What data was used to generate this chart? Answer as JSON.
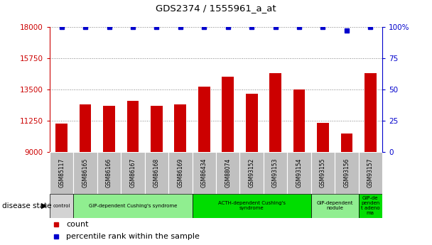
{
  "title": "GDS2374 / 1555961_a_at",
  "samples": [
    "GSM85117",
    "GSM86165",
    "GSM86166",
    "GSM86167",
    "GSM86168",
    "GSM86169",
    "GSM86434",
    "GSM88074",
    "GSM93152",
    "GSM93153",
    "GSM93154",
    "GSM93155",
    "GSM93156",
    "GSM93157"
  ],
  "counts": [
    11050,
    12400,
    12300,
    12700,
    12300,
    12400,
    13700,
    14400,
    13200,
    14650,
    13500,
    11100,
    10300,
    14650
  ],
  "percentiles": [
    100,
    100,
    100,
    100,
    100,
    100,
    100,
    100,
    100,
    100,
    100,
    100,
    97,
    100
  ],
  "bar_color": "#cc0000",
  "percentile_color": "#0000cc",
  "ylim_left": [
    9000,
    18000
  ],
  "ylim_right": [
    0,
    100
  ],
  "yticks_left": [
    9000,
    11250,
    13500,
    15750,
    18000
  ],
  "yticks_right": [
    0,
    25,
    50,
    75,
    100
  ],
  "groups": [
    {
      "label": "control",
      "start": 0,
      "end": 1,
      "color": "#d3d3d3"
    },
    {
      "label": "GIP-dependent Cushing's syndrome",
      "start": 1,
      "end": 6,
      "color": "#90ee90"
    },
    {
      "label": "ACTH-dependent Cushing's\nsyndrome",
      "start": 6,
      "end": 11,
      "color": "#00dd00"
    },
    {
      "label": "GIP-dependent\nnodule",
      "start": 11,
      "end": 13,
      "color": "#90ee90"
    },
    {
      "label": "GIP-de\npenden\nt adeno\nma",
      "start": 13,
      "end": 14,
      "color": "#00dd00"
    }
  ],
  "disease_state_label": "disease state",
  "legend_count_label": "count",
  "legend_percentile_label": "percentile rank within the sample",
  "tick_color_left": "#cc0000",
  "tick_color_right": "#0000cc",
  "background_color": "#ffffff",
  "xticklabel_bg": "#c0c0c0"
}
